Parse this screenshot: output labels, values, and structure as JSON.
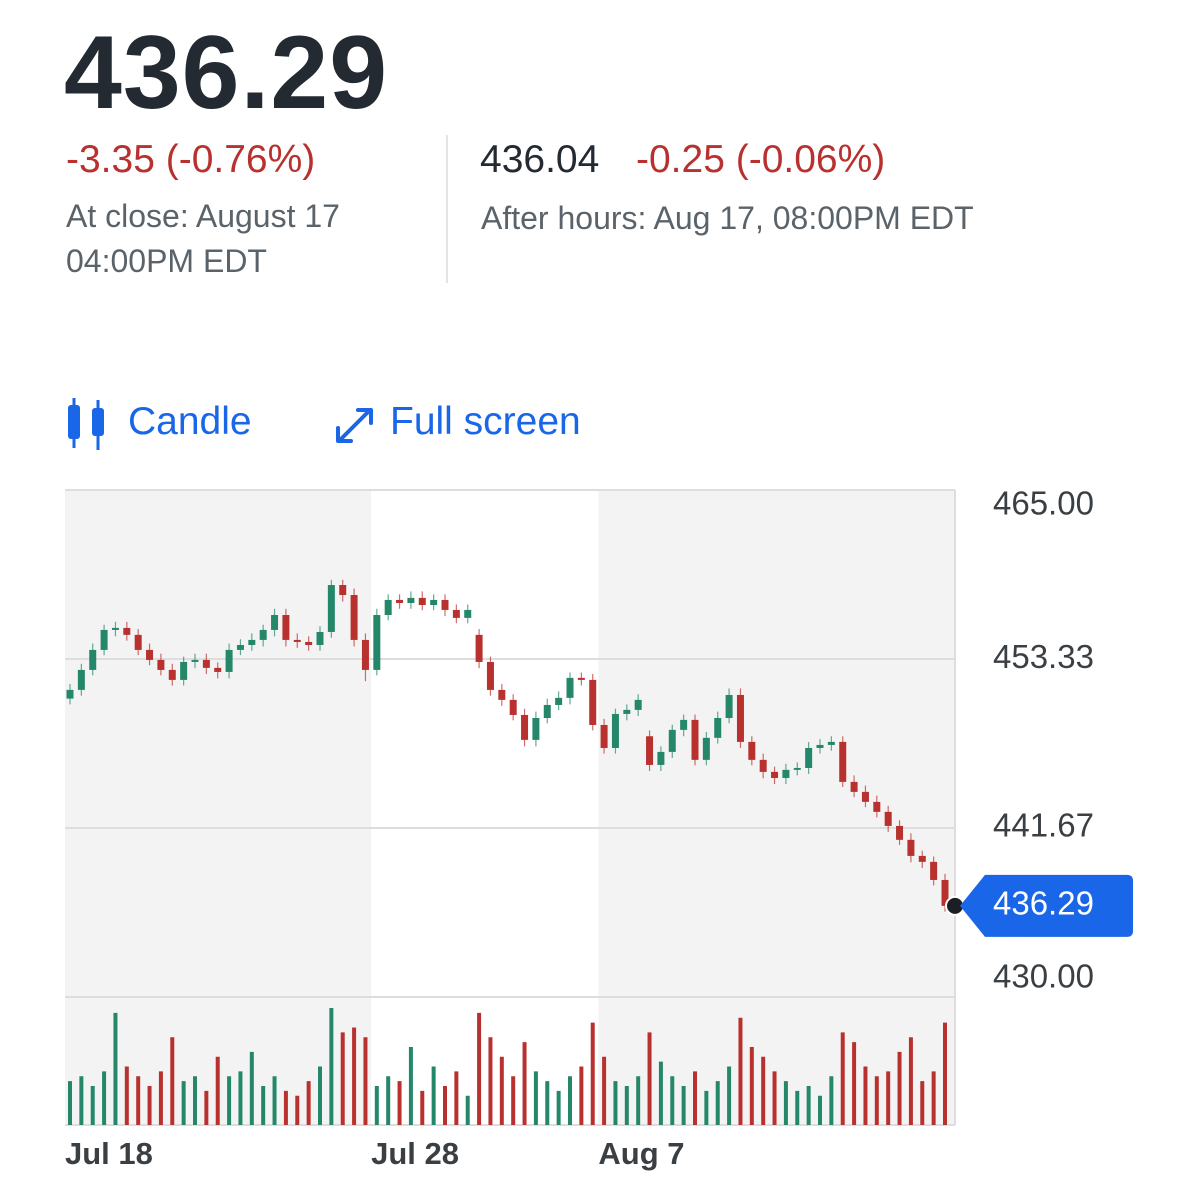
{
  "header": {
    "price": "436.29",
    "change": "-3.35 (-0.76%)",
    "close_info": "At close: August 17 04:00PM EDT",
    "after_hours_price": "436.04",
    "after_hours_change": "-0.25 (-0.06%)",
    "after_hours_info": "After hours: Aug 17, 08:00PM EDT"
  },
  "controls": {
    "candle": "Candle",
    "full_screen": "Full screen"
  },
  "chart_data": {
    "type": "candlestick",
    "categories": [
      "Jul 18",
      null,
      null,
      null,
      null,
      null,
      null,
      null,
      null,
      null,
      null,
      null,
      null,
      null,
      null,
      null,
      null,
      null,
      null,
      null,
      null,
      null,
      null,
      null,
      null,
      null,
      null,
      "Jul 28",
      null,
      null,
      null,
      null,
      null,
      null,
      null,
      null,
      null,
      null,
      null,
      null,
      null,
      null,
      null,
      null,
      null,
      null,
      null,
      "Aug 7",
      null,
      null,
      null,
      null,
      null,
      null,
      null,
      null,
      null,
      null,
      null,
      null,
      null,
      null,
      null,
      null,
      null,
      null,
      null,
      null,
      null,
      null,
      null,
      null,
      null,
      null,
      null,
      null,
      null,
      null
    ],
    "open": [
      450.6,
      451.2,
      452.58,
      453.96,
      455.34,
      455.48,
      455.0,
      453.96,
      453.27,
      452.58,
      451.89,
      453.13,
      453.27,
      452.72,
      452.44,
      453.96,
      454.3,
      454.65,
      455.34,
      456.37,
      454.65,
      454.51,
      454.3,
      455.2,
      458.44,
      457.75,
      454.65,
      452.58,
      456.37,
      457.41,
      457.2,
      457.55,
      457.06,
      457.41,
      456.72,
      456.17,
      455.0,
      453.13,
      451.2,
      450.51,
      449.47,
      447.75,
      449.26,
      450.16,
      450.65,
      452.03,
      451.89,
      448.78,
      447.19,
      449.54,
      449.82,
      448.0,
      446.02,
      446.92,
      448.44,
      449.13,
      446.37,
      447.89,
      449.26,
      450.85,
      447.61,
      446.37,
      445.54,
      445.12,
      445.68,
      445.81,
      447.19,
      447.4,
      447.61,
      444.85,
      444.16,
      443.47,
      442.78,
      441.81,
      440.85,
      439.74,
      439.33,
      438.08
    ],
    "high": [
      451.6,
      453.0,
      454.4,
      455.7,
      455.9,
      455.9,
      455.4,
      454.4,
      453.7,
      453.0,
      453.5,
      453.7,
      453.7,
      453.1,
      454.4,
      454.7,
      455.1,
      455.7,
      456.8,
      456.8,
      455.1,
      454.9,
      455.6,
      458.8,
      458.8,
      458.2,
      455.1,
      456.8,
      457.8,
      457.8,
      458.0,
      458.0,
      457.8,
      457.8,
      457.1,
      457.1,
      455.4,
      453.5,
      451.6,
      450.9,
      449.9,
      449.7,
      450.6,
      451.1,
      452.4,
      452.4,
      452.3,
      449.2,
      449.9,
      450.2,
      450.9,
      448.4,
      447.3,
      448.8,
      449.5,
      449.5,
      448.3,
      449.7,
      451.3,
      451.3,
      448.0,
      446.8,
      445.9,
      446.1,
      446.2,
      447.6,
      447.8,
      448.0,
      448.0,
      445.3,
      444.6,
      443.9,
      443.2,
      442.2,
      441.3,
      440.1,
      439.7,
      438.5
    ],
    "low": [
      450.2,
      450.8,
      452.2,
      453.6,
      454.9,
      454.6,
      453.6,
      452.9,
      452.2,
      451.5,
      451.5,
      452.7,
      452.3,
      452.0,
      452.0,
      453.6,
      453.9,
      454.2,
      454.9,
      454.2,
      454.1,
      453.9,
      453.9,
      454.8,
      457.3,
      454.2,
      451.8,
      452.2,
      456.0,
      456.8,
      456.8,
      456.7,
      456.7,
      456.3,
      455.8,
      455.8,
      452.7,
      450.8,
      450.1,
      449.1,
      447.3,
      447.3,
      448.9,
      449.8,
      450.2,
      451.5,
      448.4,
      446.8,
      446.8,
      449.1,
      449.4,
      445.6,
      445.6,
      446.5,
      448.0,
      446.0,
      446.0,
      447.5,
      448.9,
      447.2,
      446.0,
      445.1,
      444.7,
      444.7,
      445.3,
      445.4,
      446.8,
      447.0,
      444.5,
      443.8,
      443.1,
      442.4,
      441.4,
      440.5,
      439.3,
      438.9,
      437.7,
      435.9
    ],
    "close": [
      451.2,
      452.58,
      453.96,
      455.34,
      455.48,
      455.0,
      453.96,
      453.27,
      452.58,
      451.89,
      453.13,
      453.27,
      452.72,
      452.44,
      453.96,
      454.3,
      454.65,
      455.34,
      456.37,
      454.65,
      454.51,
      454.3,
      455.2,
      458.44,
      457.75,
      454.65,
      452.58,
      456.37,
      457.41,
      457.2,
      457.55,
      457.06,
      457.41,
      456.72,
      456.17,
      456.72,
      453.13,
      451.2,
      450.51,
      449.47,
      447.75,
      449.26,
      450.16,
      450.65,
      452.03,
      451.89,
      448.78,
      447.19,
      449.54,
      449.82,
      450.51,
      446.02,
      446.92,
      448.44,
      449.13,
      446.37,
      447.89,
      449.26,
      450.85,
      447.61,
      446.37,
      445.54,
      445.12,
      445.68,
      445.81,
      447.19,
      447.4,
      447.61,
      444.85,
      444.16,
      443.47,
      442.78,
      441.81,
      440.85,
      439.74,
      439.33,
      438.08,
      436.29
    ],
    "volume": [
      0.45,
      0.5,
      0.4,
      0.55,
      1.15,
      0.6,
      0.5,
      0.4,
      0.55,
      0.9,
      0.45,
      0.5,
      0.35,
      0.7,
      0.5,
      0.55,
      0.75,
      0.4,
      0.5,
      0.35,
      0.3,
      0.45,
      0.6,
      1.2,
      0.95,
      1.0,
      0.9,
      0.4,
      0.5,
      0.45,
      0.8,
      0.35,
      0.6,
      0.4,
      0.55,
      0.3,
      1.15,
      0.9,
      0.7,
      0.5,
      0.85,
      0.55,
      0.45,
      0.35,
      0.5,
      0.6,
      1.05,
      0.7,
      0.45,
      0.4,
      0.5,
      0.95,
      0.65,
      0.5,
      0.4,
      0.55,
      0.35,
      0.45,
      0.6,
      1.1,
      0.8,
      0.7,
      0.55,
      0.45,
      0.35,
      0.4,
      0.3,
      0.5,
      0.95,
      0.85,
      0.6,
      0.5,
      0.55,
      0.75,
      0.9,
      0.45,
      0.55,
      1.05
    ],
    "ylim": [
      430,
      465
    ],
    "yticks": [
      {
        "value": 465,
        "label": "465.00"
      },
      453.33,
      441.67,
      {
        "value": 430,
        "label": "430.00"
      }
    ],
    "grid": true,
    "up_color": "#25876a",
    "down_color": "#b8312f",
    "highlight_color": "#1a66e8"
  }
}
